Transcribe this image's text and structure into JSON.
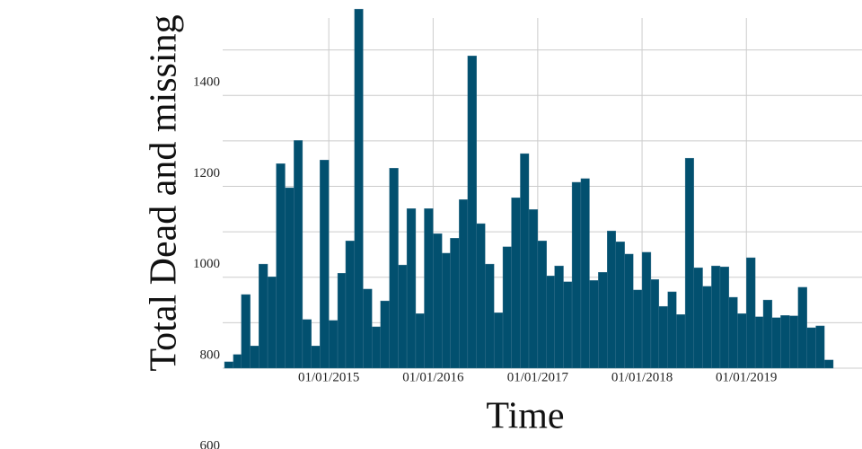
{
  "chart_data": {
    "type": "bar",
    "xlabel": "Time",
    "ylabel": "Total Dead and missing",
    "color": "#02506f",
    "grid": true,
    "x": [
      "2014-01-01",
      "2014-02-01",
      "2014-03-01",
      "2014-04-01",
      "2014-05-01",
      "2014-06-01",
      "2014-07-01",
      "2014-08-01",
      "2014-09-01",
      "2014-10-01",
      "2014-11-01",
      "2014-12-01",
      "2015-01-01",
      "2015-02-01",
      "2015-03-01",
      "2015-04-01",
      "2015-05-01",
      "2015-06-01",
      "2015-07-01",
      "2015-08-01",
      "2015-09-01",
      "2015-10-01",
      "2015-11-01",
      "2015-12-01",
      "2016-01-01",
      "2016-02-01",
      "2016-03-01",
      "2016-04-01",
      "2016-05-01",
      "2016-06-01",
      "2016-07-01",
      "2016-08-01",
      "2016-09-01",
      "2016-10-01",
      "2016-11-01",
      "2016-12-01",
      "2017-01-01",
      "2017-02-01",
      "2017-03-01",
      "2017-04-01",
      "2017-05-01",
      "2017-06-01",
      "2017-07-01",
      "2017-08-01",
      "2017-09-01",
      "2017-10-01",
      "2017-11-01",
      "2017-12-01",
      "2018-01-01",
      "2018-02-01",
      "2018-03-01",
      "2018-04-01",
      "2018-05-01",
      "2018-06-01",
      "2018-07-01",
      "2018-08-01",
      "2018-09-01",
      "2018-10-01",
      "2018-11-01",
      "2018-12-01",
      "2019-01-01",
      "2019-02-01",
      "2019-03-01",
      "2019-04-01",
      "2019-05-01",
      "2019-06-01",
      "2019-07-01",
      "2019-08-01",
      "2019-09-01",
      "2019-10-01"
    ],
    "values": [
      814,
      830,
      962,
      849,
      1029,
      1001,
      1250,
      1197,
      1301,
      907,
      849,
      1258,
      905,
      1009,
      1080,
      1590,
      974,
      891,
      948,
      1240,
      1027,
      1151,
      920,
      1151,
      1096,
      1053,
      1086,
      1171,
      1487,
      1118,
      1029,
      922,
      1067,
      1175,
      1272,
      1149,
      1080,
      1003,
      1025,
      990,
      1209,
      1217,
      993,
      1011,
      1102,
      1078,
      1051,
      972,
      1055,
      995,
      936,
      968,
      918,
      1262,
      1021,
      980,
      1025,
      1023,
      956,
      920,
      1043,
      913,
      950,
      911,
      916,
      915,
      978,
      889,
      893,
      818
    ],
    "xlim": [
      "2014-01-01",
      "2019-11-01"
    ],
    "xticks": [
      {
        "value": "2015-01-01",
        "label": "01/01/2015"
      },
      {
        "value": "2016-01-01",
        "label": "01/01/2016"
      },
      {
        "value": "2017-01-01",
        "label": "01/01/2017"
      },
      {
        "value": "2018-01-01",
        "label": "01/01/2018"
      },
      {
        "value": "2019-01-01",
        "label": "01/01/2019"
      }
    ],
    "ylim": [
      800,
      1610
    ],
    "yticks": [
      600,
      800,
      1000,
      1200,
      1400
    ]
  }
}
